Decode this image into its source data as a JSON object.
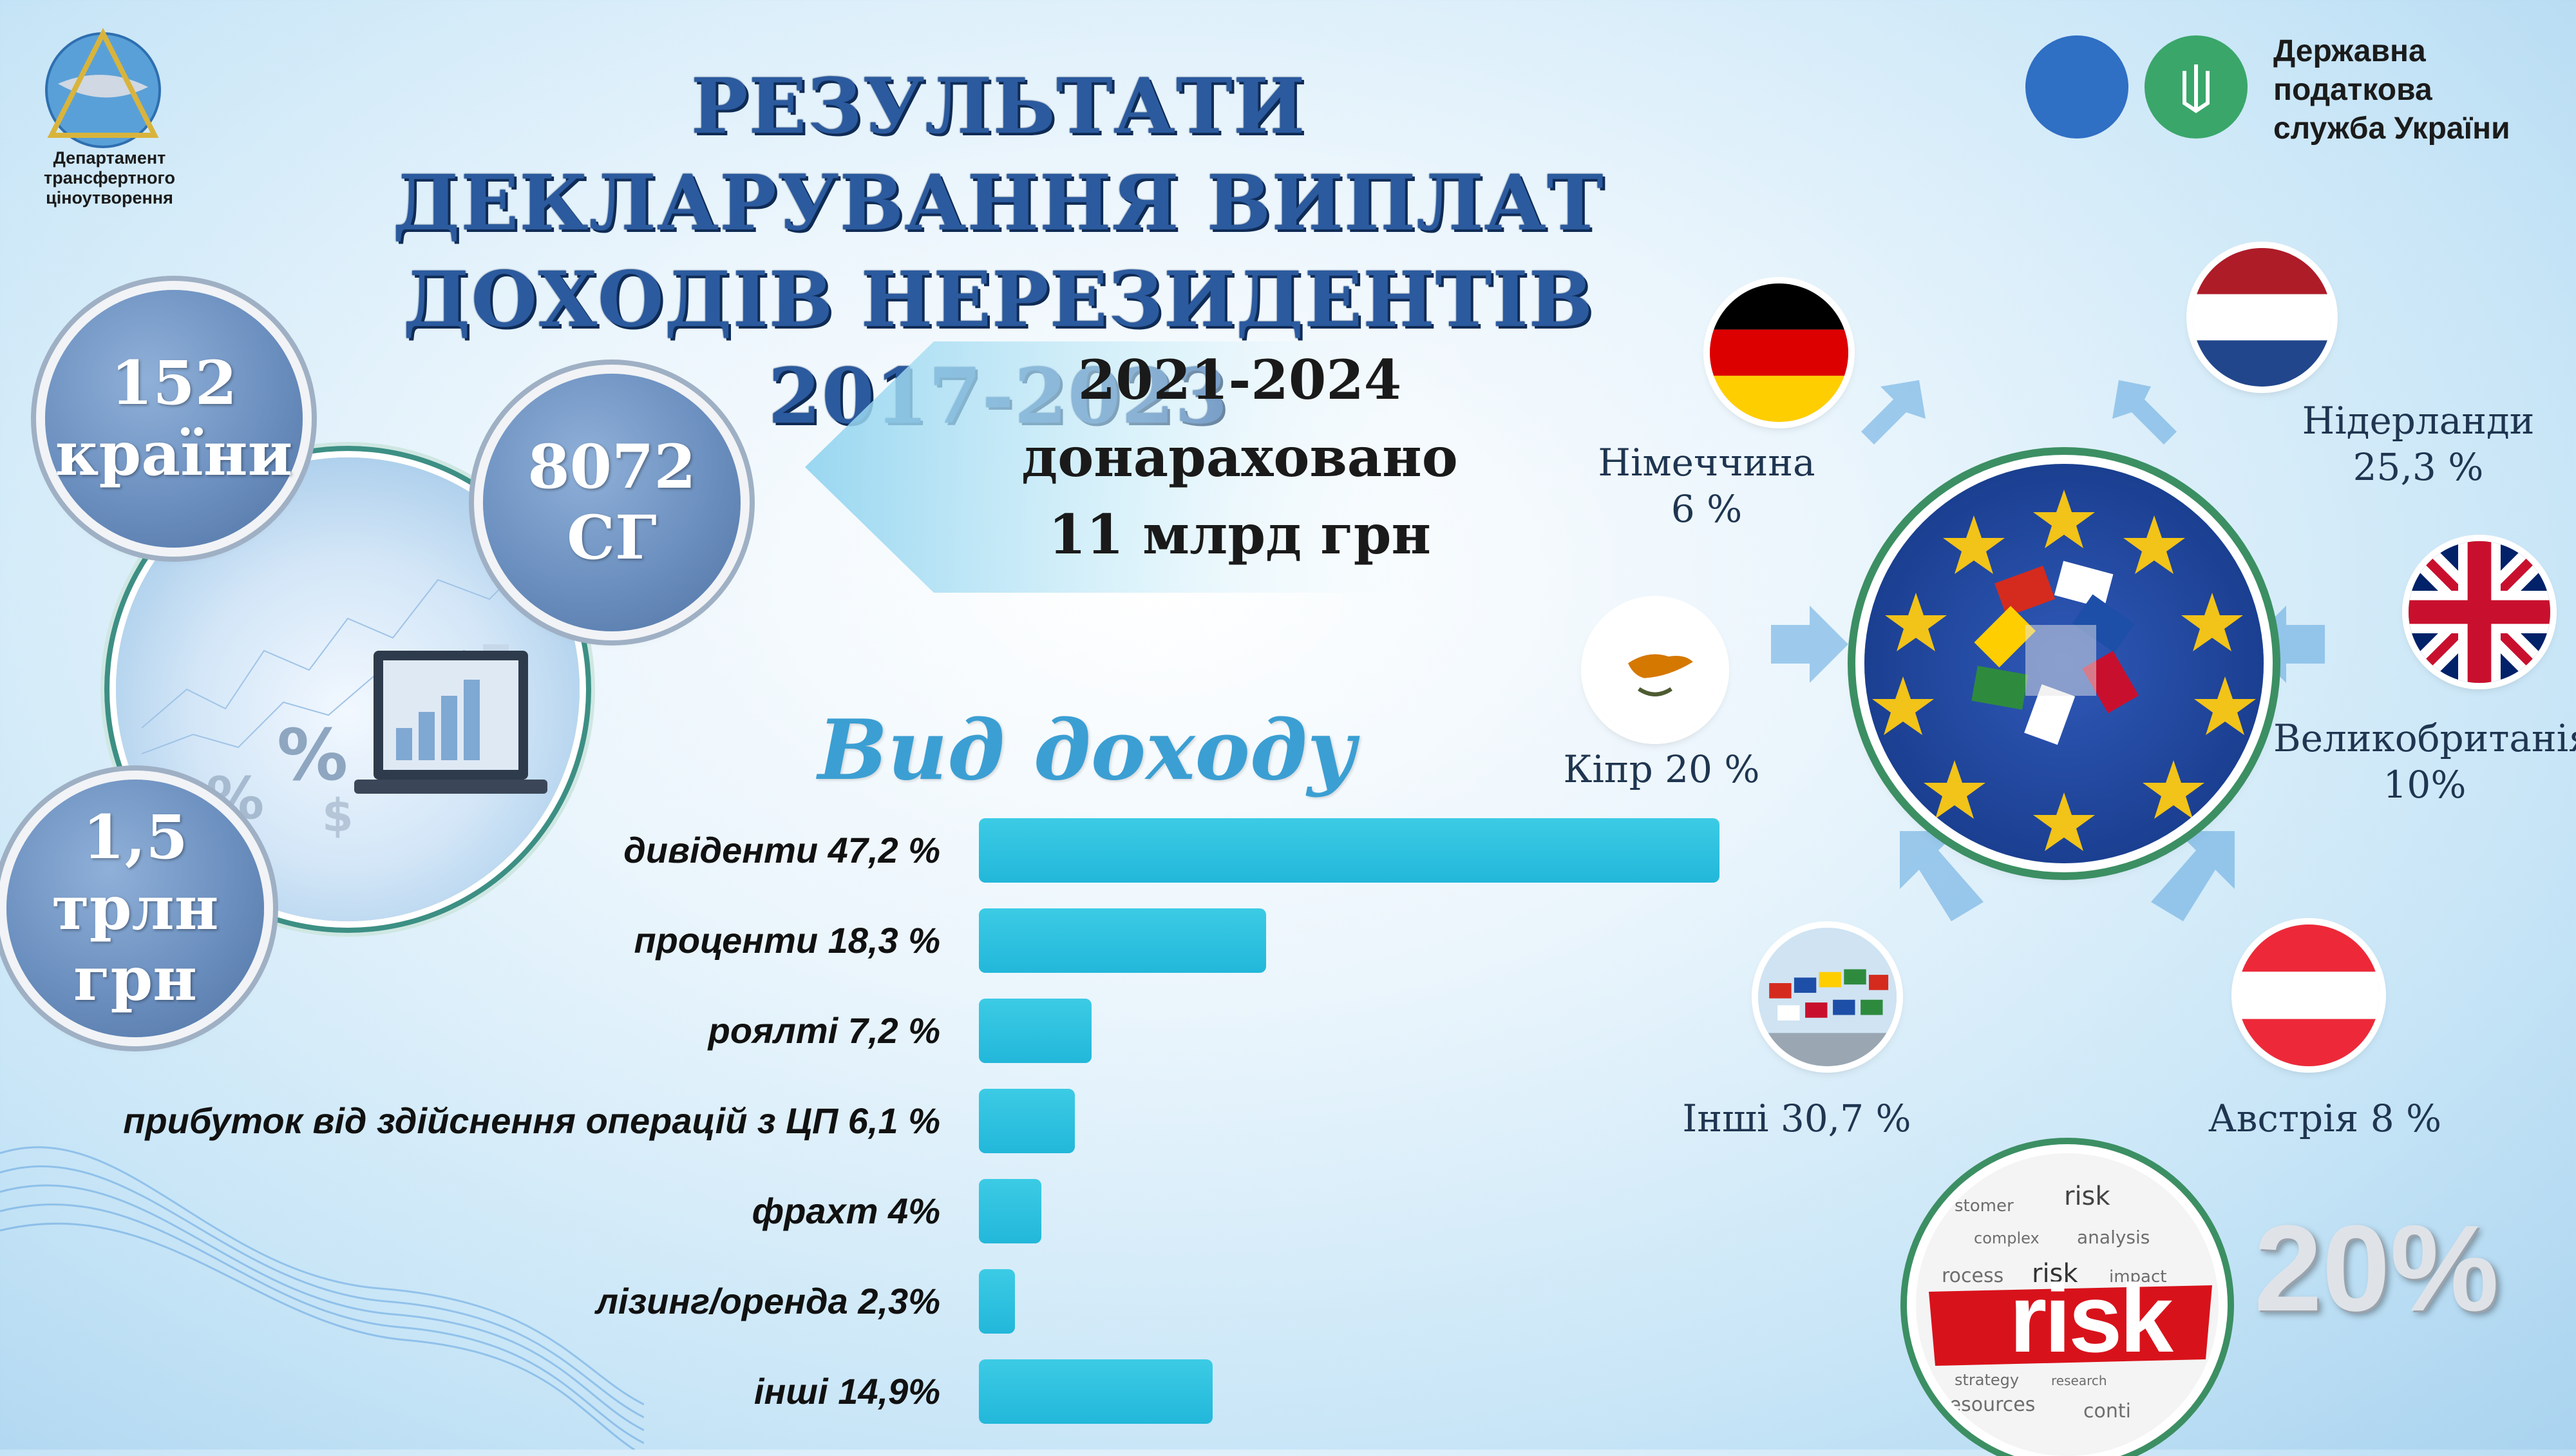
{
  "header": {
    "title_line1": "РЕЗУЛЬТАТИ ДЕКЛАРУВАННЯ ВИПЛАТ",
    "title_line2": "ДОХОДІВ НЕРЕЗИДЕНТІВ 2017-2023",
    "dept_line1": "Департамент",
    "dept_line2": "трансфертного",
    "dept_line3": "ціноутворення",
    "agency_line1": "Державна",
    "agency_line2": "податкова",
    "agency_line3": "служба України"
  },
  "stats": {
    "countries_value": "152",
    "countries_label": "країни",
    "cg_value": "8072",
    "cg_label": "СГ",
    "amount_value": "1,5",
    "amount_label": "трлн грн"
  },
  "note": {
    "line1": "2021-2024",
    "line2": "донараховано",
    "line3": "11 млрд грн"
  },
  "chart_data": {
    "type": "bar",
    "title": "Вид доходу",
    "orientation": "horizontal",
    "categories": [
      "дивіденти 47,2 %",
      "проценти 18,3 %",
      "роялті 7,2 %",
      "прибуток від здійснення операцій з ЦП 6,1 %",
      "фрахт 4%",
      "лізинг/оренда 2,3%",
      "інші 14,9%"
    ],
    "values": [
      47.2,
      18.3,
      7.2,
      6.1,
      4,
      2.3,
      14.9
    ],
    "xlim": [
      0,
      47.2
    ]
  },
  "countries": {
    "germany": {
      "name": "Німеччина",
      "share": "6 %"
    },
    "netherlands": {
      "name": "Нідерланди",
      "share": "25,3 %"
    },
    "cyprus": {
      "name": "Кіпр 20 %"
    },
    "uk": {
      "name": "Великобританія",
      "share": "10%"
    },
    "others": {
      "name": "Інші 30,7 %"
    },
    "austria": {
      "name": "Австрія 8 %"
    }
  },
  "risk": {
    "word": "risk",
    "percent": "20%"
  },
  "colors": {
    "bar": "#22b7da",
    "title": "#2b5a9e",
    "heading": "#3b9fd3",
    "circle": "#6b8fbf"
  }
}
